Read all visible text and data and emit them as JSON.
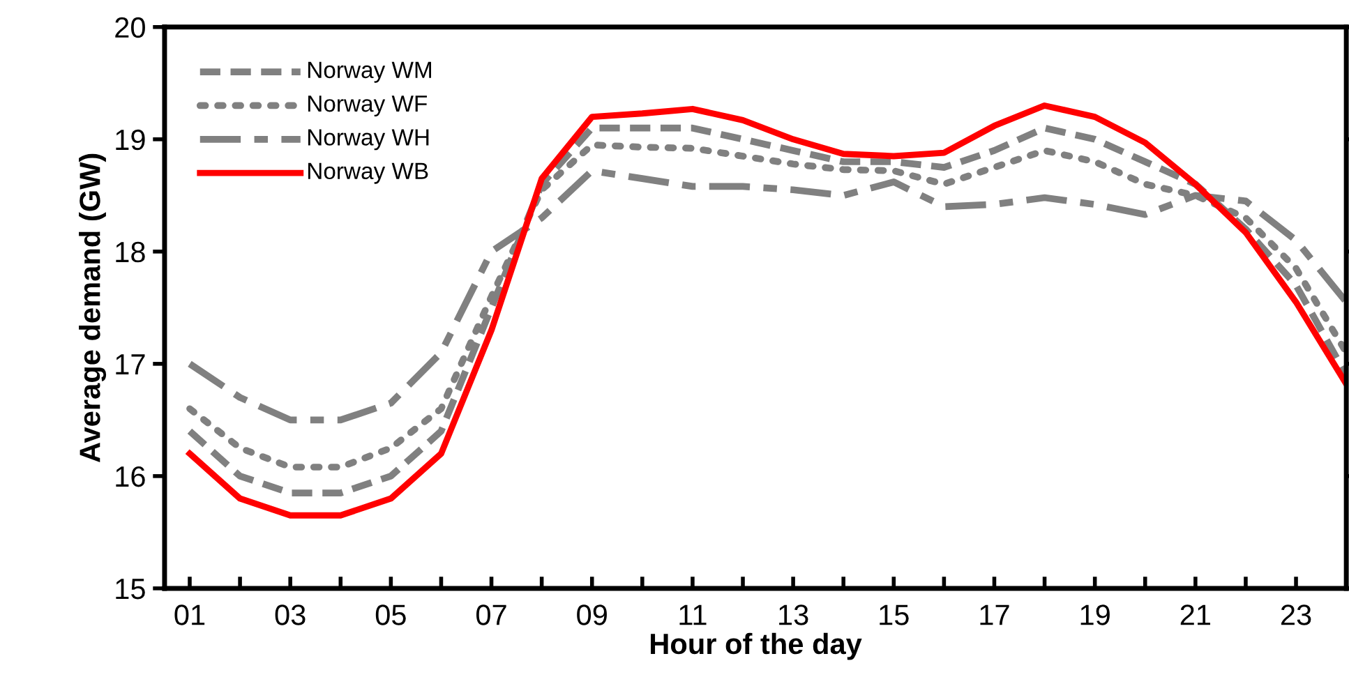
{
  "chart_data": {
    "type": "line",
    "xlabel": "Hour of the day",
    "ylabel": "Average demand (GW)",
    "categories": [
      "01",
      null,
      "03",
      null,
      "05",
      null,
      "07",
      null,
      "09",
      null,
      "11",
      null,
      "13",
      null,
      "15",
      null,
      "17",
      null,
      "19",
      null,
      "21",
      null,
      "23",
      null
    ],
    "series": [
      {
        "name": "Norway WM",
        "color": "#808080",
        "line_style": "dashed",
        "values": [
          16.4,
          16.0,
          15.85,
          15.85,
          16.0,
          16.4,
          17.5,
          18.6,
          19.1,
          19.1,
          19.1,
          19.0,
          18.9,
          18.8,
          18.8,
          18.75,
          18.9,
          19.1,
          19.0,
          18.8,
          18.6,
          18.2,
          17.7,
          16.9
        ]
      },
      {
        "name": "Norway WF",
        "color": "#808080",
        "line_style": "dotted",
        "values": [
          16.6,
          16.25,
          16.08,
          16.08,
          16.25,
          16.6,
          17.6,
          18.55,
          18.95,
          18.93,
          18.92,
          18.85,
          18.78,
          18.73,
          18.72,
          18.6,
          18.75,
          18.9,
          18.8,
          18.6,
          18.5,
          18.3,
          17.85,
          17.1
        ]
      },
      {
        "name": "Norway WH",
        "color": "#808080",
        "line_style": "dashdot",
        "values": [
          17.0,
          16.7,
          16.5,
          16.5,
          16.65,
          17.1,
          18.0,
          18.3,
          18.72,
          18.65,
          18.58,
          18.58,
          18.55,
          18.5,
          18.62,
          18.4,
          18.42,
          18.48,
          18.42,
          18.33,
          18.5,
          18.45,
          18.1,
          17.55
        ]
      },
      {
        "name": "Norway WB",
        "color": "#ff0000",
        "line_style": "solid",
        "values": [
          16.2,
          15.8,
          15.65,
          15.65,
          15.8,
          16.2,
          17.3,
          18.65,
          19.2,
          19.23,
          19.27,
          19.17,
          19.0,
          18.87,
          18.85,
          18.88,
          19.12,
          19.3,
          19.2,
          18.97,
          18.6,
          18.17,
          17.55,
          16.82
        ]
      }
    ],
    "ylim": [
      15,
      20
    ],
    "yticks": [
      15,
      16,
      17,
      18,
      19,
      20
    ],
    "grid": false,
    "legend": "top left",
    "marker": "none"
  }
}
